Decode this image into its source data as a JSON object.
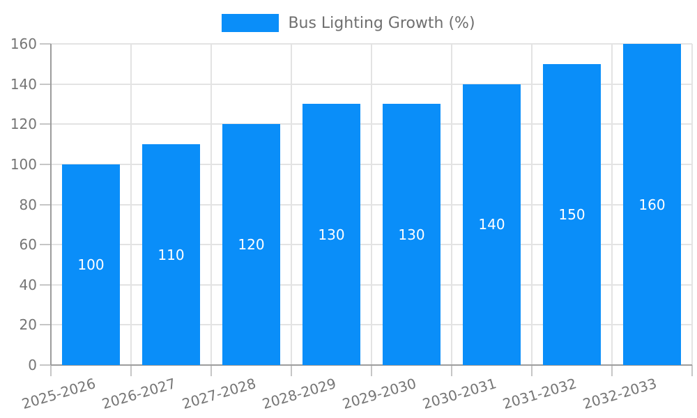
{
  "chart_data": {
    "type": "bar",
    "title": "Bus Lighting Growth (%)",
    "categories": [
      "2025-2026",
      "2026-2027",
      "2027-2028",
      "2028-2029",
      "2029-2030",
      "2030-2031",
      "2031-2032",
      "2032-2033"
    ],
    "values": [
      100,
      110,
      120,
      130,
      130,
      140,
      150,
      160
    ],
    "bar_value_labels": [
      "100",
      "110",
      "120",
      "130",
      "130",
      "140",
      "150",
      "160"
    ],
    "xlabel": "",
    "ylabel": "",
    "ylim": [
      0,
      160
    ],
    "ytick_step": 20,
    "grid": "on",
    "legend_position": "top-center",
    "colors": {
      "bar": "#0a8ef9",
      "bar_label_text": "#ffffff",
      "axis_line": "#9c9c9c",
      "gridline": "#e3e3e3",
      "tick_mark": "#c6c6c6",
      "axis_text": "#757575",
      "legend_text": "#6f6f6f"
    }
  }
}
